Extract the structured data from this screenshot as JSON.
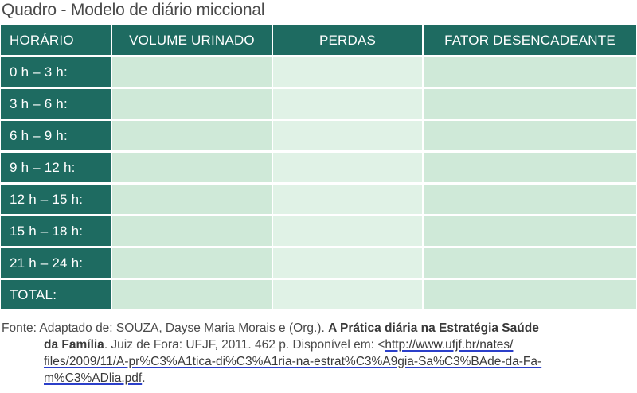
{
  "title": "Quadro - Modelo de diário miccional",
  "table": {
    "headers": [
      "HORÁRIO",
      "VOLUME URINADO",
      "PERDAS",
      "FATOR DESENCADEANTE"
    ],
    "rows": [
      "0 h – 3 h:",
      "3 h – 6 h:",
      "6 h – 9 h:",
      "9 h – 12 h:",
      "12 h – 15 h:",
      "15 h – 18 h:",
      "21 h – 24 h:",
      "TOTAL:"
    ],
    "header_color": "#1e6b61",
    "cell_colors": [
      "#cfe9d8",
      "#e0f2e6",
      "#cfe9d8"
    ]
  },
  "source": {
    "prefix": "Fonte: Adaptado de: SOUZA, Dayse Maria Morais e (Org.). ",
    "title_line1": "A Prática diária na Estratégia Saúde",
    "title_line2": "da Família",
    "after_title": ". Juiz de Fora: UFJF, 2011. 462 p. Disponível em: <",
    "url_line1": "http://www.ufjf.br/nates/",
    "url_line2": "files/2009/11/A-pr%C3%A1tica-di%C3%A1ria-na-estrat%C3%A9gia-Sa%C3%BAde-da-Fa-",
    "url_line3": "m%C3%ADlia.pdf",
    "suffix": "."
  }
}
